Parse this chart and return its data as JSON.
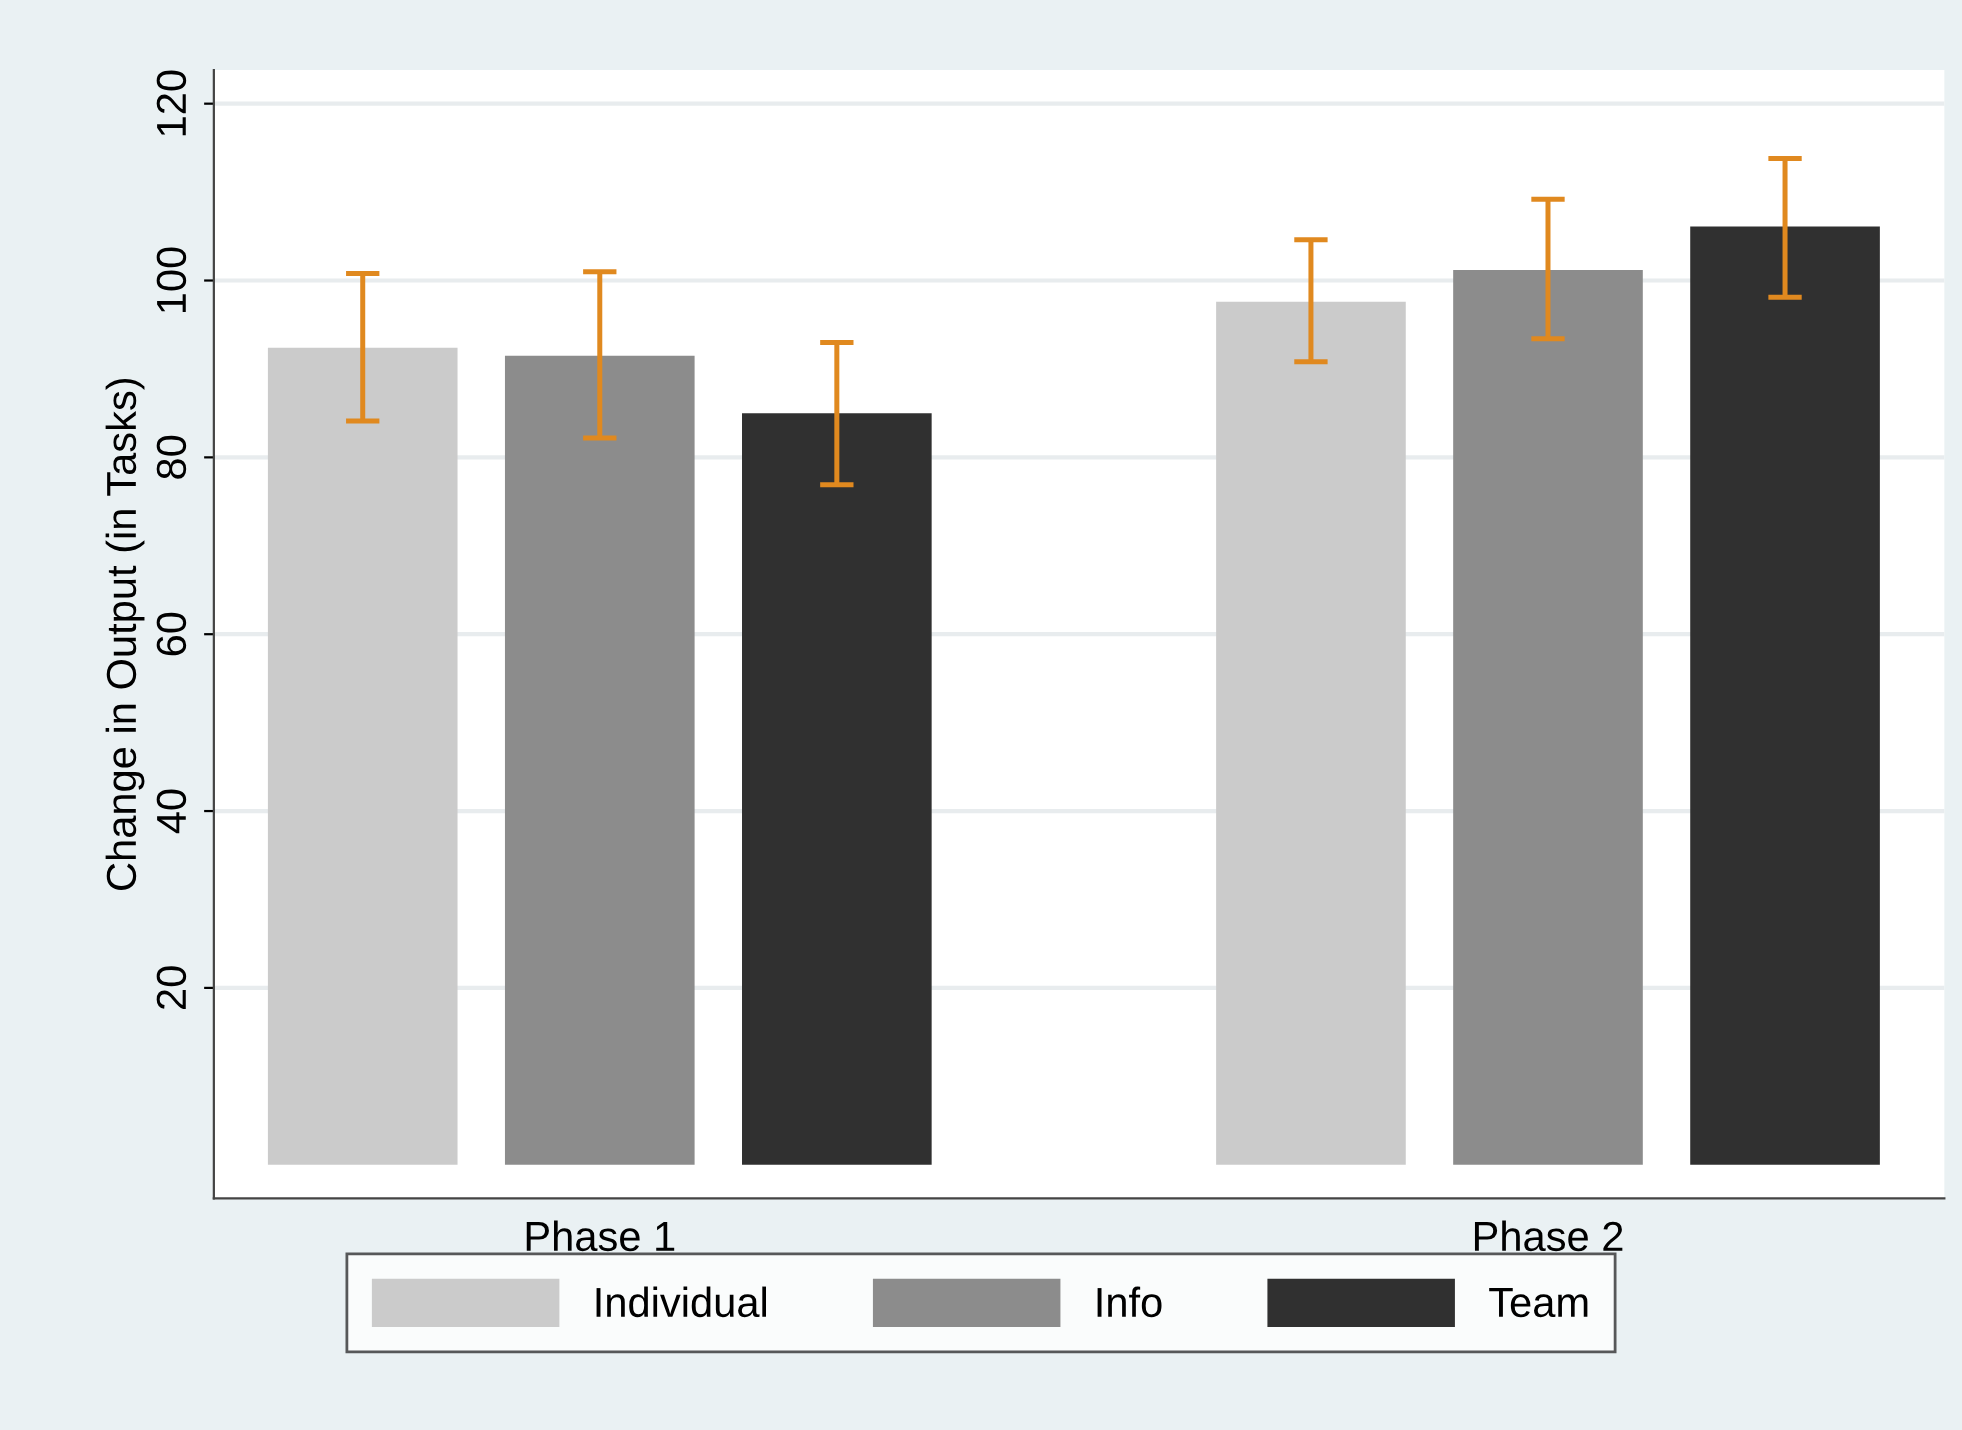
{
  "chart_data": {
    "type": "bar",
    "ylabel": "Change in Output (in Tasks)",
    "categories": [
      "Phase 1",
      "Phase 2"
    ],
    "series": [
      {
        "name": "Individual",
        "color": "#cbcbcb",
        "values": [
          92.4,
          97.6
        ],
        "errors": [
          [
            84.1,
            100.8
          ],
          [
            90.8,
            104.6
          ]
        ]
      },
      {
        "name": "Info",
        "color": "#8c8c8c",
        "values": [
          91.5,
          101.2
        ],
        "errors": [
          [
            82.2,
            101.0
          ],
          [
            93.4,
            109.2
          ]
        ]
      },
      {
        "name": "Team",
        "color": "#303030",
        "values": [
          85.0,
          106.1
        ],
        "errors": [
          [
            76.9,
            93.0
          ],
          [
            98.1,
            113.8
          ]
        ]
      }
    ],
    "ylim": [
      -3.8,
      123.8
    ],
    "yticks": [
      20,
      40,
      60,
      80,
      100,
      120
    ],
    "grid": "y",
    "legend": "bottom"
  }
}
